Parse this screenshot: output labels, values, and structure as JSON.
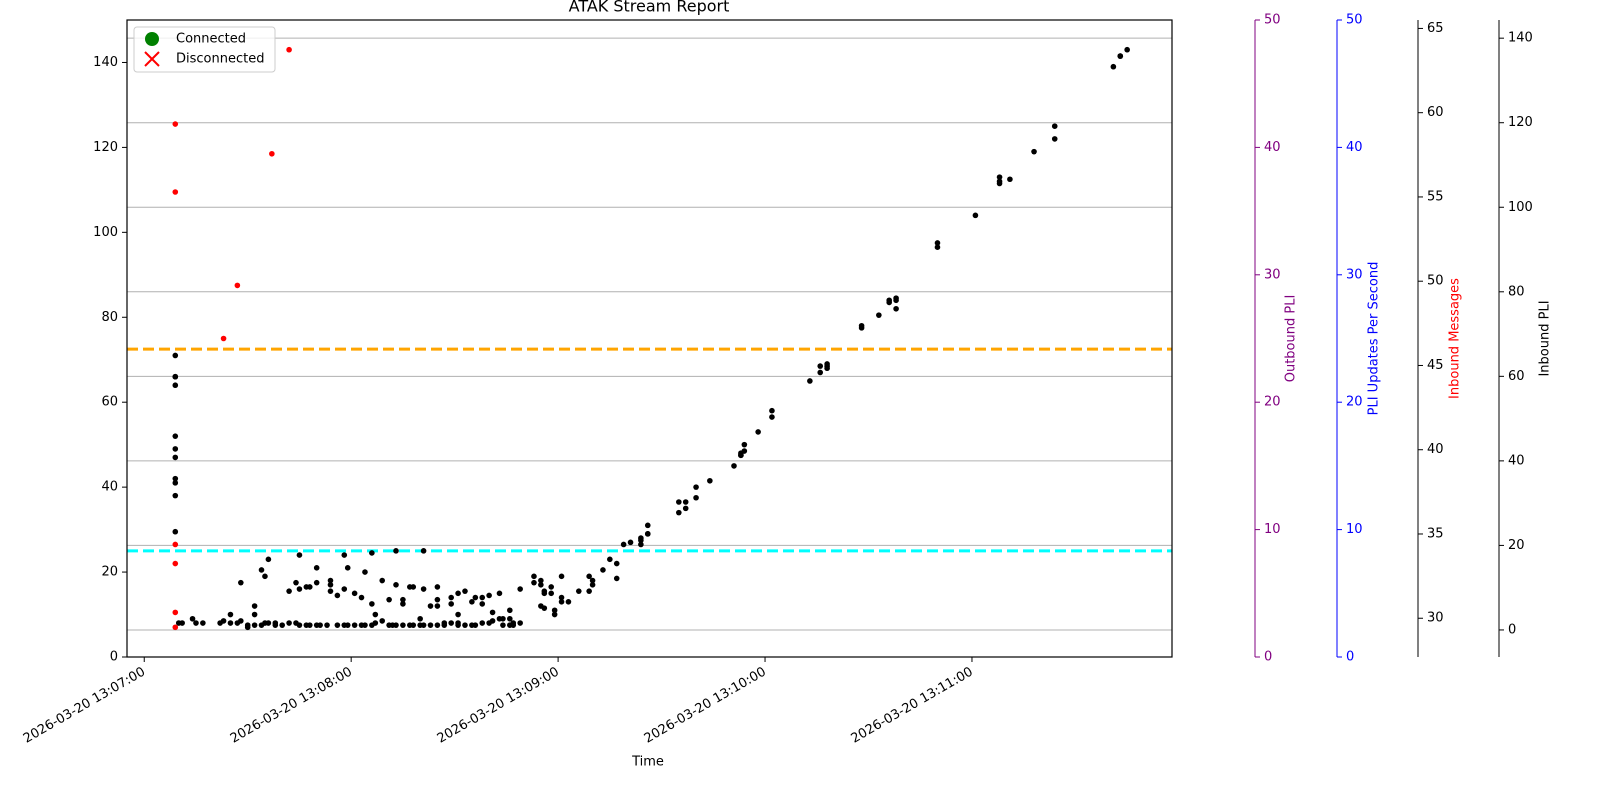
{
  "chart_data": {
    "type": "scatter",
    "title": "ATAK Stream Report",
    "x_label": "Time",
    "xlim": [
      "2026-03-20 13:06:55",
      "2026-03-20 13:11:58"
    ],
    "xticks": [
      "2026-03-20 13:07:00",
      "2026-03-20 13:08:00",
      "2026-03-20 13:09:00",
      "2026-03-20 13:10:00",
      "2026-03-20 13:11:00"
    ],
    "ylim": [
      0,
      150
    ],
    "yticks": [
      0,
      20,
      40,
      60,
      80,
      100,
      120,
      140
    ],
    "legend": [
      {
        "name": "Connected",
        "color": "green",
        "marker": "circle"
      },
      {
        "name": "Disconnected",
        "color": "red",
        "marker": "x"
      }
    ],
    "legend_position": "upper left",
    "hlines": [
      {
        "value": 72.5,
        "color": "orange"
      },
      {
        "value": 25,
        "color": "cyan"
      }
    ],
    "extra_axes": [
      {
        "label": "Outbound PLI",
        "color": "purple",
        "tick_color": "purple",
        "ylim": [
          0,
          50
        ],
        "yticks": [
          0,
          10,
          20,
          30,
          40,
          50
        ],
        "grid": false
      },
      {
        "label": "PLI Updates Per Second",
        "color": "blue",
        "tick_color": "blue",
        "ylim": [
          0,
          50
        ],
        "yticks": [
          0,
          10,
          20,
          30,
          40,
          50
        ],
        "grid": false
      },
      {
        "label": "Inbound Messages",
        "color": "red",
        "tick_color": "black",
        "ylim": [
          27.7,
          65.5
        ],
        "yticks": [
          30,
          35,
          40,
          45,
          50,
          55,
          60,
          65
        ],
        "grid": false
      },
      {
        "label": "Inbound PLI",
        "color": "black",
        "tick_color": "black",
        "ylim": [
          -6.4,
          144.3
        ],
        "yticks": [
          0,
          20,
          40,
          60,
          80,
          100,
          120,
          140
        ],
        "grid": true
      }
    ],
    "series": [
      {
        "color": "black",
        "x": [],
        "values": []
      },
      {
        "color": "red",
        "x": [],
        "values": []
      }
    ],
    "points_black": [
      [
        9,
        71
      ],
      [
        9,
        66
      ],
      [
        9,
        66
      ],
      [
        9,
        64
      ],
      [
        9,
        52
      ],
      [
        9,
        49
      ],
      [
        9,
        47
      ],
      [
        9,
        42
      ],
      [
        9,
        41
      ],
      [
        9,
        38
      ],
      [
        9,
        29.5
      ],
      [
        10,
        8
      ],
      [
        11,
        8
      ],
      [
        14,
        9
      ],
      [
        15,
        8
      ],
      [
        17,
        8
      ],
      [
        22,
        8
      ],
      [
        23,
        8.5
      ],
      [
        25,
        8
      ],
      [
        25,
        10
      ],
      [
        27,
        8
      ],
      [
        28,
        17.5
      ],
      [
        28,
        8.5
      ],
      [
        30,
        7
      ],
      [
        30,
        7.5
      ],
      [
        32,
        12
      ],
      [
        32,
        7.5
      ],
      [
        32,
        10
      ],
      [
        34,
        20.5
      ],
      [
        34,
        7.5
      ],
      [
        35,
        19
      ],
      [
        35,
        8
      ],
      [
        36,
        23
      ],
      [
        36,
        8
      ],
      [
        38,
        8
      ],
      [
        38,
        7.5
      ],
      [
        40,
        7.5
      ],
      [
        42,
        15.5
      ],
      [
        42,
        8
      ],
      [
        44,
        17.5
      ],
      [
        44,
        8
      ],
      [
        45,
        24
      ],
      [
        45,
        16
      ],
      [
        45,
        7.5
      ],
      [
        47,
        16.5
      ],
      [
        47,
        7.5
      ],
      [
        48,
        16.5
      ],
      [
        48,
        7.5
      ],
      [
        50,
        17.5
      ],
      [
        50,
        21
      ],
      [
        50,
        7.5
      ],
      [
        51,
        7.5
      ],
      [
        53,
        7.5
      ],
      [
        54,
        15.5
      ],
      [
        54,
        17
      ],
      [
        54,
        18
      ],
      [
        56,
        14.5
      ],
      [
        56,
        7.5
      ],
      [
        58,
        16
      ],
      [
        58,
        7.5
      ],
      [
        58,
        24
      ],
      [
        59,
        21
      ],
      [
        59,
        7.5
      ],
      [
        61,
        15
      ],
      [
        61,
        7.5
      ],
      [
        63,
        7.5
      ],
      [
        63,
        14
      ],
      [
        64,
        20
      ],
      [
        64,
        7.5
      ],
      [
        66,
        12.5
      ],
      [
        66,
        24.5
      ],
      [
        66,
        7.5
      ],
      [
        67,
        10
      ],
      [
        67,
        8
      ],
      [
        69,
        8.5
      ],
      [
        69,
        18
      ],
      [
        71,
        13.5
      ],
      [
        71,
        7.5
      ],
      [
        72,
        7.5
      ],
      [
        73,
        17
      ],
      [
        73,
        25
      ],
      [
        73,
        7.5
      ],
      [
        75,
        12.5
      ],
      [
        75,
        13.5
      ],
      [
        75,
        7.5
      ],
      [
        77,
        16.5
      ],
      [
        77,
        7.5
      ],
      [
        78,
        16.5
      ],
      [
        78,
        7.5
      ],
      [
        80,
        9
      ],
      [
        80,
        7.5
      ],
      [
        81,
        25
      ],
      [
        81,
        16
      ],
      [
        81,
        7.5
      ],
      [
        83,
        12
      ],
      [
        83,
        7.5
      ],
      [
        85,
        16.5
      ],
      [
        85,
        12
      ],
      [
        85,
        13.5
      ],
      [
        85,
        7.5
      ],
      [
        87,
        7.5
      ],
      [
        87,
        8
      ],
      [
        89,
        8
      ],
      [
        89,
        14
      ],
      [
        89,
        12.5
      ],
      [
        91,
        7.5
      ],
      [
        91,
        15
      ],
      [
        91,
        10
      ],
      [
        91,
        8
      ],
      [
        93,
        15.5
      ],
      [
        93,
        7.5
      ],
      [
        95,
        13
      ],
      [
        95,
        7.5
      ],
      [
        96,
        14
      ],
      [
        96,
        7.5
      ],
      [
        98,
        12.5
      ],
      [
        98,
        14
      ],
      [
        98,
        8
      ],
      [
        100,
        14.5
      ],
      [
        100,
        8
      ],
      [
        101,
        10.5
      ],
      [
        101,
        8.5
      ],
      [
        103,
        15
      ],
      [
        103,
        9
      ],
      [
        104,
        7.5
      ],
      [
        104,
        9
      ],
      [
        106,
        11
      ],
      [
        106,
        7.5
      ],
      [
        106,
        9
      ],
      [
        107,
        7.5
      ],
      [
        107,
        8
      ],
      [
        109,
        16
      ],
      [
        109,
        8
      ],
      [
        113,
        19
      ],
      [
        113,
        17.5
      ],
      [
        115,
        18
      ],
      [
        115,
        12
      ],
      [
        115,
        17
      ],
      [
        116,
        11.5
      ],
      [
        116,
        15.5
      ],
      [
        116,
        15
      ],
      [
        118,
        16.5
      ],
      [
        118,
        15
      ],
      [
        119,
        10
      ],
      [
        119,
        11
      ],
      [
        121,
        19
      ],
      [
        121,
        14
      ],
      [
        121,
        13
      ],
      [
        123,
        13
      ],
      [
        126,
        15.5
      ],
      [
        129,
        19
      ],
      [
        129,
        15.5
      ],
      [
        130,
        18
      ],
      [
        130,
        17
      ],
      [
        133,
        20.5
      ],
      [
        135,
        23
      ],
      [
        137,
        18.5
      ],
      [
        137,
        22
      ],
      [
        139,
        26.5
      ],
      [
        141,
        27
      ],
      [
        144,
        27.5
      ],
      [
        144,
        26.5
      ],
      [
        144,
        28
      ],
      [
        146,
        29
      ],
      [
        146,
        31
      ],
      [
        146,
        29
      ],
      [
        155,
        36.5
      ],
      [
        155,
        34
      ],
      [
        157,
        36.5
      ],
      [
        157,
        35
      ],
      [
        160,
        37.5
      ],
      [
        160,
        40
      ],
      [
        164,
        41.5
      ],
      [
        171,
        45
      ],
      [
        173,
        47.5
      ],
      [
        173,
        47.5
      ],
      [
        173,
        48
      ],
      [
        174,
        48.5
      ],
      [
        174,
        50
      ],
      [
        178,
        53
      ],
      [
        182,
        56.5
      ],
      [
        182,
        58
      ],
      [
        193,
        65
      ],
      [
        196,
        68.5
      ],
      [
        196,
        67
      ],
      [
        198,
        68
      ],
      [
        198,
        69
      ],
      [
        198,
        68.5
      ],
      [
        208,
        78
      ],
      [
        208,
        77.5
      ],
      [
        213,
        80.5
      ],
      [
        216,
        84
      ],
      [
        216,
        83.5
      ],
      [
        218,
        82
      ],
      [
        218,
        84
      ],
      [
        218,
        84.5
      ],
      [
        230,
        97.5
      ],
      [
        230,
        96.5
      ],
      [
        241,
        104
      ],
      [
        248,
        111.5
      ],
      [
        248,
        112
      ],
      [
        248,
        113
      ],
      [
        251,
        112.5
      ],
      [
        258,
        119
      ],
      [
        264,
        125
      ],
      [
        264,
        122
      ],
      [
        281,
        139
      ],
      [
        283,
        141.5
      ],
      [
        283,
        141.5
      ],
      [
        285,
        143
      ]
    ],
    "points_red": [
      [
        9,
        125.5
      ],
      [
        9,
        109.5
      ],
      [
        9,
        26.5
      ],
      [
        9,
        22
      ],
      [
        9,
        10.5
      ],
      [
        9,
        7
      ],
      [
        23,
        75
      ],
      [
        27,
        87.5
      ],
      [
        37,
        118.5
      ],
      [
        42,
        143
      ]
    ]
  }
}
